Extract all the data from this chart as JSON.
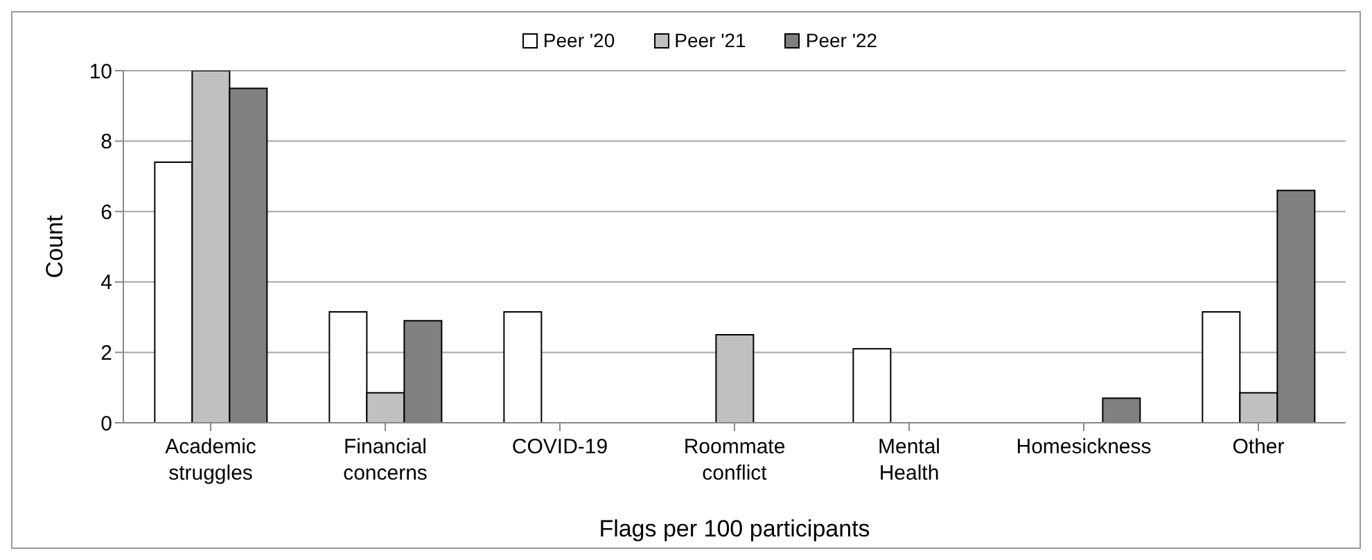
{
  "chart_data": {
    "type": "bar",
    "ylabel": "Count",
    "xlabel": "Flags per 100 participants",
    "categories": [
      "Academic struggles",
      "Financial concerns",
      "COVID-19",
      "Roommate conflict",
      "Mental Health",
      "Homesickness",
      "Other"
    ],
    "series": [
      {
        "name": "Peer '20",
        "color": "#ffffff",
        "values": [
          7.4,
          3.15,
          3.15,
          null,
          2.1,
          null,
          3.15
        ]
      },
      {
        "name": "Peer '21",
        "color": "#c0c0c0",
        "values": [
          10,
          0.85,
          null,
          2.5,
          null,
          null,
          0.85
        ]
      },
      {
        "name": "Peer '22",
        "color": "#808080",
        "values": [
          9.5,
          2.9,
          null,
          null,
          null,
          0.7,
          6.6
        ]
      }
    ],
    "ylim": [
      0,
      10
    ],
    "yticks": [
      0,
      2,
      4,
      6,
      8,
      10
    ],
    "grid": "y",
    "legend": "top"
  }
}
